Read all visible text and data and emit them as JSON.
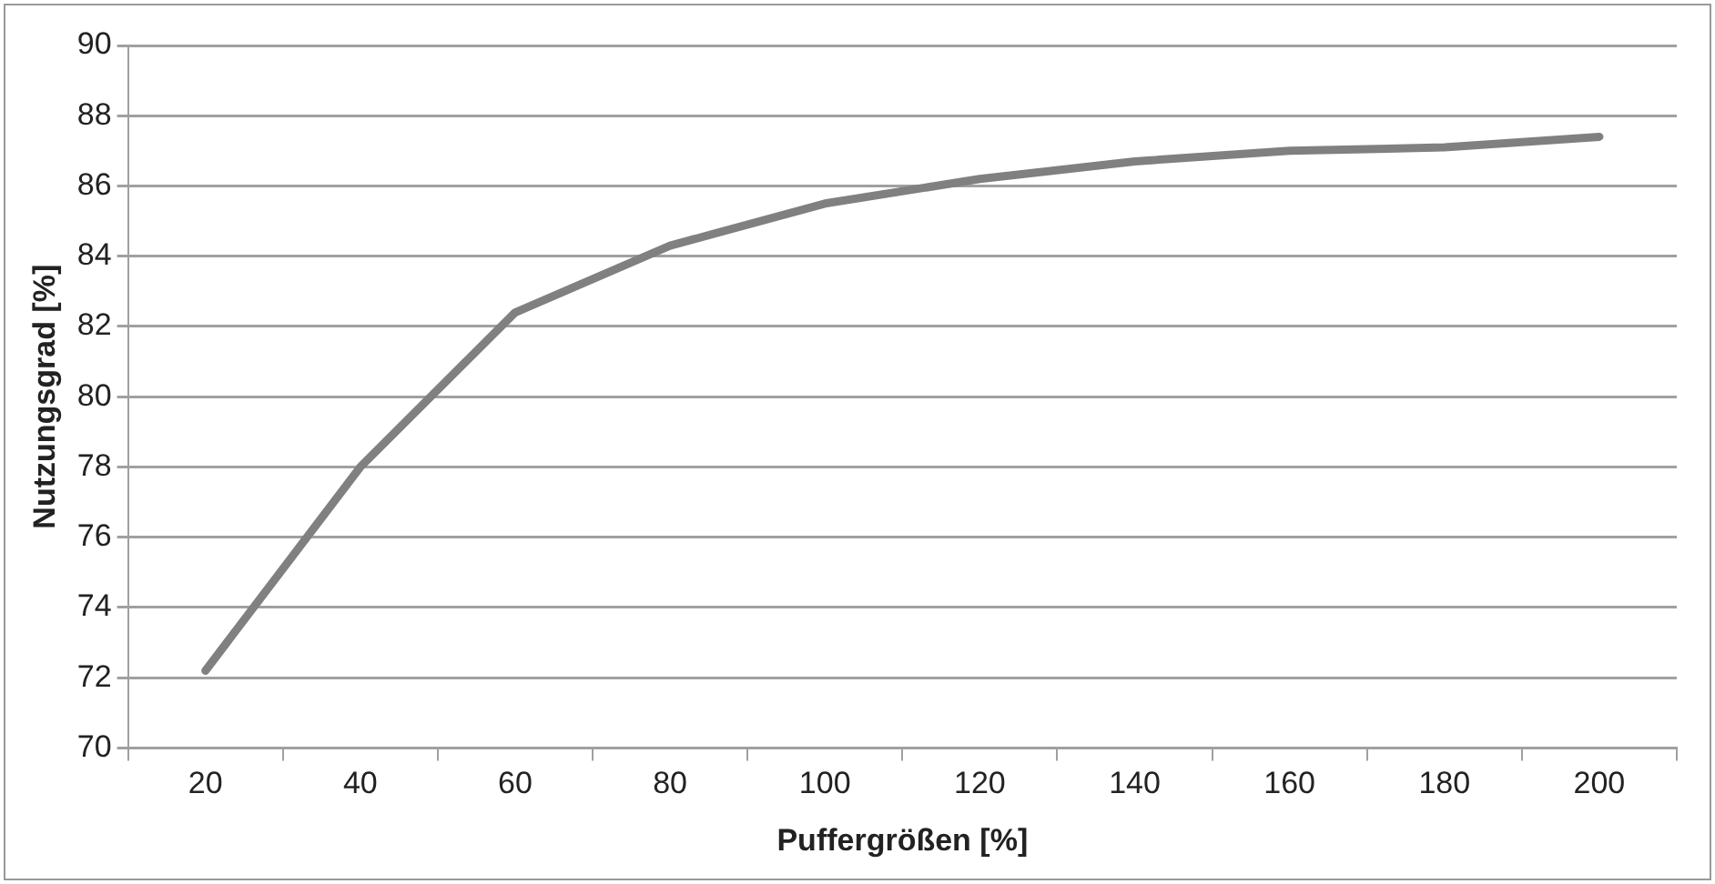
{
  "chart_data": {
    "type": "line",
    "xlabel": "Puffergrößen [%]",
    "ylabel": "Nutzungsgrad [%]",
    "categories": [
      "20",
      "40",
      "60",
      "80",
      "100",
      "120",
      "140",
      "160",
      "180",
      "200"
    ],
    "series": [
      {
        "color": "#808080",
        "values": [
          72.2,
          78.0,
          82.4,
          84.3,
          85.5,
          86.2,
          86.7,
          87.0,
          87.1,
          87.4
        ]
      }
    ],
    "ylim": [
      70,
      90
    ],
    "yticks": [
      70,
      72,
      74,
      76,
      78,
      80,
      82,
      84,
      86,
      88,
      90
    ],
    "grid": "y",
    "legend": false,
    "marker": "none",
    "line_style": "solid"
  }
}
